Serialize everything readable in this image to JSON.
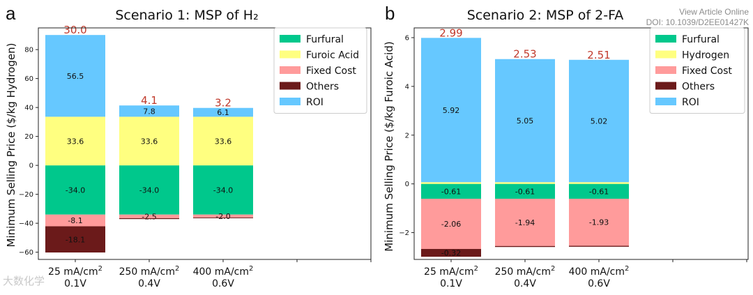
{
  "source_watermark": {
    "line1": "View Article Online",
    "line2": "DOI: 10.1039/D2EE01427K"
  },
  "logo_watermark": "大数化学",
  "chart_data": [
    {
      "type": "bar",
      "stacked": true,
      "panel_label": "a",
      "title": "Scenario 1: MSP of H₂",
      "ylabel": "Minimum Selling Price ($/kg Hydrogen)",
      "xlabel": "",
      "ylim": [
        -65,
        95
      ],
      "yticks": [
        -60,
        -40,
        -20,
        0,
        20,
        40,
        60,
        80
      ],
      "grid": false,
      "legend_position": "top-right",
      "categories": [
        "25 mA/cm²\n0.1V",
        "250 mA/cm²\n0.4V",
        "400 mA/cm²\n0.6V"
      ],
      "series": [
        {
          "name": "Furfural",
          "color": "#00c88c",
          "values": [
            -34.0,
            -34.0,
            -34.0
          ],
          "labels": [
            "-34.0",
            "-34.0",
            "-34.0"
          ]
        },
        {
          "name": "Furoic Acid",
          "color": "#ffff80",
          "values": [
            33.6,
            33.6,
            33.6
          ],
          "labels": [
            "33.6",
            "33.6",
            "33.6"
          ]
        },
        {
          "name": "Fixed Cost",
          "color": "#ff9b9b",
          "values": [
            -8.1,
            -2.5,
            -2.0
          ],
          "labels": [
            "-8.1",
            "-2.5",
            "-2.0"
          ]
        },
        {
          "name": "Others",
          "color": "#6b1a1a",
          "values": [
            -18.1,
            -0.6,
            -0.5
          ],
          "labels": [
            "-18.1",
            "",
            ""
          ]
        },
        {
          "name": "ROI",
          "color": "#66c8ff",
          "values": [
            56.5,
            7.8,
            6.1
          ],
          "labels": [
            "56.5",
            "7.8",
            "6.1"
          ]
        }
      ],
      "totals": [
        "30.0",
        "4.1",
        "3.2"
      ],
      "total_color": "#c0392b"
    },
    {
      "type": "bar",
      "stacked": true,
      "panel_label": "b",
      "title": "Scenario 2: MSP of 2-FA",
      "ylabel": "Minimum Selling Price ($/kg Furoic Acid)",
      "xlabel": "",
      "ylim": [
        -3.1,
        6.4
      ],
      "yticks": [
        -2,
        0,
        2,
        4,
        6
      ],
      "grid": false,
      "legend_position": "top-right",
      "categories": [
        "25 mA/cm²\n0.1V",
        "250 mA/cm²\n0.4V",
        "400 mA/cm²\n0.6V"
      ],
      "series": [
        {
          "name": "Furfural",
          "color": "#00c88c",
          "values": [
            -0.61,
            -0.61,
            -0.61
          ],
          "labels": [
            "-0.61",
            "-0.61",
            "-0.61"
          ]
        },
        {
          "name": "Hydrogen",
          "color": "#ffff80",
          "values": [
            0.07,
            0.07,
            0.07
          ],
          "labels": [
            "",
            "",
            ""
          ]
        },
        {
          "name": "Fixed Cost",
          "color": "#ff9b9b",
          "values": [
            -2.06,
            -1.94,
            -1.93
          ],
          "labels": [
            "-2.06",
            "-1.94",
            "-1.93"
          ]
        },
        {
          "name": "Others",
          "color": "#6b1a1a",
          "values": [
            -0.32,
            -0.04,
            -0.04
          ],
          "labels": [
            "-0.32",
            "",
            ""
          ]
        },
        {
          "name": "ROI",
          "color": "#66c8ff",
          "values": [
            5.92,
            5.05,
            5.02
          ],
          "labels": [
            "5.92",
            "5.05",
            "5.02"
          ]
        }
      ],
      "totals": [
        "2.99",
        "2.53",
        "2.51"
      ],
      "total_color": "#c0392b"
    }
  ]
}
